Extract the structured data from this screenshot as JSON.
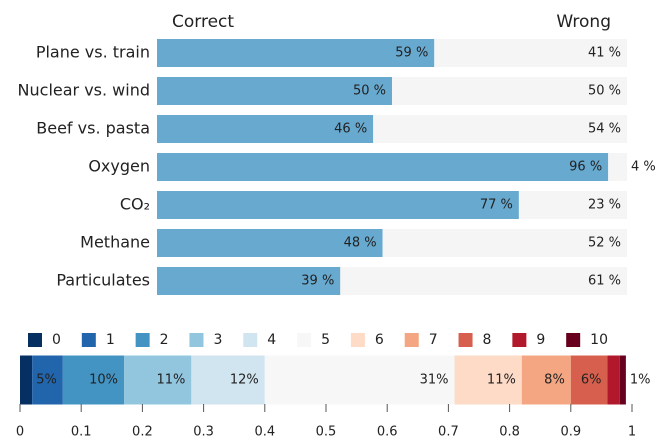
{
  "chart_data": [
    {
      "type": "bar",
      "orientation": "horizontal",
      "stacked": true,
      "categories": [
        "Plane vs. train",
        "Nuclear vs. wind",
        "Beef vs. pasta",
        "Oxygen",
        "CO₂",
        "Methane",
        "Particulates"
      ],
      "xlim": [
        0,
        100
      ],
      "series": [
        {
          "name": "Correct",
          "color": "#67a9cf",
          "values": [
            59,
            50,
            46,
            96,
            77,
            48,
            39
          ],
          "value_labels": [
            "59 %",
            "50 %",
            "46 %",
            "96 %",
            "77 %",
            "48 %",
            "39 %"
          ]
        },
        {
          "name": "Wrong",
          "color": "#f5f5f5",
          "values": [
            41,
            50,
            54,
            4,
            23,
            52,
            61
          ],
          "value_labels": [
            "41 %",
            "50 %",
            "54 %",
            "4 %",
            "23 %",
            "52 %",
            "61 %"
          ]
        }
      ]
    },
    {
      "type": "bar",
      "orientation": "horizontal",
      "stacked": true,
      "xlim": [
        0,
        1
      ],
      "xticks": [
        0,
        0.1,
        0.2,
        0.3,
        0.4,
        0.5,
        0.6,
        0.7,
        0.8,
        0.9,
        1
      ],
      "series": [
        {
          "name": "0",
          "color": "#053061",
          "values": [
            0.02
          ],
          "value_labels": [
            null
          ]
        },
        {
          "name": "1",
          "color": "#2166ac",
          "values": [
            0.05
          ],
          "value_labels": [
            "5%"
          ]
        },
        {
          "name": "2",
          "color": "#4393c3",
          "values": [
            0.1
          ],
          "value_labels": [
            "10%"
          ]
        },
        {
          "name": "3",
          "color": "#92c5de",
          "values": [
            0.11
          ],
          "value_labels": [
            "11%"
          ]
        },
        {
          "name": "4",
          "color": "#d1e5f0",
          "values": [
            0.12
          ],
          "value_labels": [
            "12%"
          ]
        },
        {
          "name": "5",
          "color": "#f7f7f7",
          "values": [
            0.31
          ],
          "value_labels": [
            "31%"
          ]
        },
        {
          "name": "6",
          "color": "#fddbc7",
          "values": [
            0.11
          ],
          "value_labels": [
            "11%"
          ]
        },
        {
          "name": "7",
          "color": "#f4a582",
          "values": [
            0.08
          ],
          "value_labels": [
            "8%"
          ]
        },
        {
          "name": "8",
          "color": "#d6604d",
          "values": [
            0.06
          ],
          "value_labels": [
            "6%"
          ]
        },
        {
          "name": "9",
          "color": "#b2182b",
          "values": [
            0.02
          ],
          "value_labels": [
            null
          ]
        },
        {
          "name": "10",
          "color": "#67001f",
          "values": [
            0.01
          ],
          "value_labels": [
            "1%"
          ]
        }
      ]
    }
  ]
}
